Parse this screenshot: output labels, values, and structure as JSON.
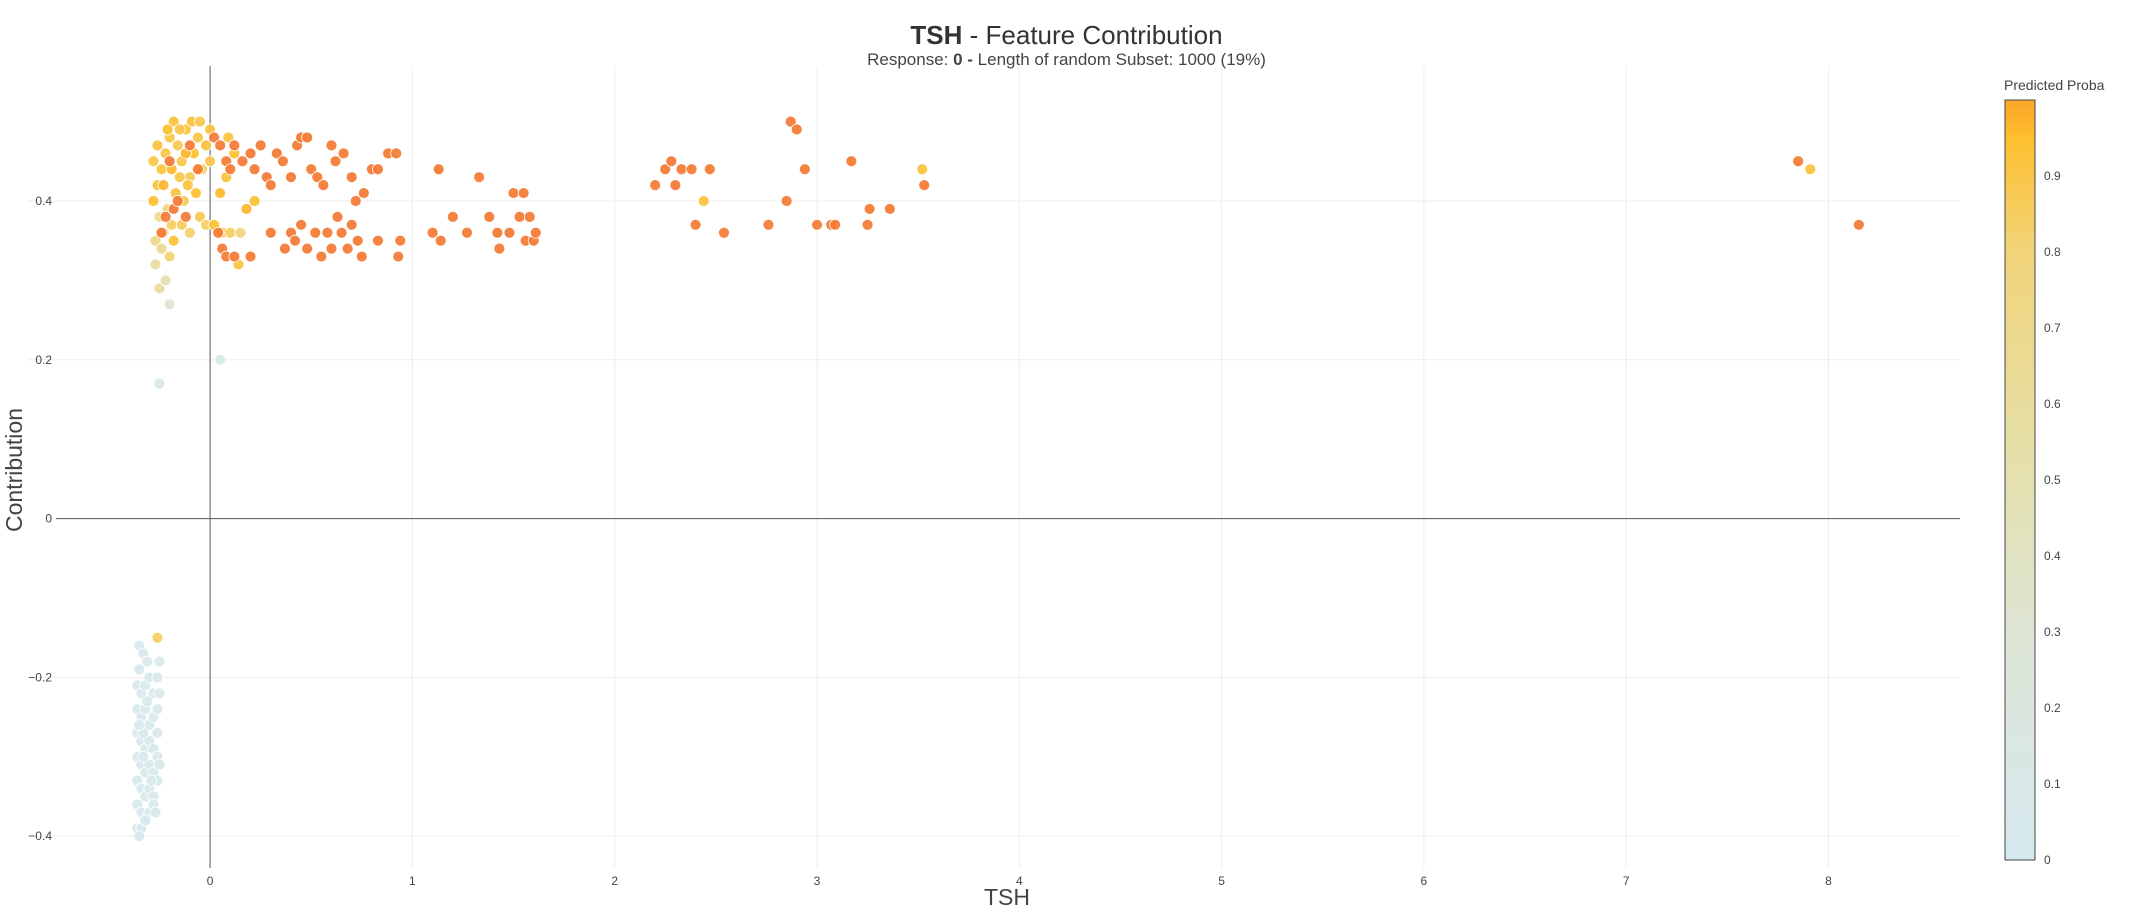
{
  "header": {
    "title_bold": "TSH",
    "title_rest": " - Feature Contribution",
    "subtitle_prefix": "Response: ",
    "subtitle_bold": "0 - ",
    "subtitle_rest": "Length of random Subset: 1000 (19%)"
  },
  "chart_data": {
    "type": "scatter",
    "title": "TSH - Feature Contribution",
    "subtitle": "Response: 0 - Length of random Subset: 1000 (19%)",
    "xlabel": "TSH",
    "ylabel": "Contribution",
    "xlim": [
      -0.9,
      8.65
    ],
    "ylim": [
      -0.44,
      0.57
    ],
    "x_ticks": [
      0,
      1,
      2,
      3,
      4,
      5,
      6,
      7,
      8
    ],
    "x_tick_labels": [
      "0",
      "1",
      "2",
      "3",
      "4",
      "5",
      "6",
      "7",
      "8"
    ],
    "y_ticks": [
      -0.4,
      -0.2,
      0,
      0.2,
      0.4
    ],
    "y_tick_labels": [
      "−0.4",
      "−0.2",
      "0",
      "0.2",
      "0.4"
    ],
    "grid": true,
    "zero_lines": true,
    "colorbar": {
      "title": "Predicted Proba",
      "range": [
        0,
        1
      ],
      "ticks": [
        0,
        0.1,
        0.2,
        0.3,
        0.4,
        0.5,
        0.6,
        0.7,
        0.8,
        0.9
      ],
      "tick_labels": [
        "0",
        "0.1",
        "0.2",
        "0.3",
        "0.4",
        "0.5",
        "0.6",
        "0.7",
        "0.8",
        "0.9"
      ],
      "colors": [
        "#d6e9f0",
        "#dde5d4",
        "#e6dfa6",
        "#f1d47a",
        "#fdbf2e",
        "#fca529"
      ]
    },
    "points": [
      {
        "x": -0.25,
        "y": 0.17,
        "c": 0.05
      },
      {
        "x": 0.05,
        "y": 0.2,
        "c": 0.08
      },
      {
        "x": -0.2,
        "y": 0.27,
        "c": 0.3
      },
      {
        "x": -0.25,
        "y": 0.29,
        "c": 0.6
      },
      {
        "x": -0.27,
        "y": 0.32,
        "c": 0.6
      },
      {
        "x": -0.22,
        "y": 0.3,
        "c": 0.5
      },
      {
        "x": -0.26,
        "y": -0.15,
        "c": 0.85
      },
      {
        "x": -0.28,
        "y": 0.4,
        "c": 0.95
      },
      {
        "x": -0.26,
        "y": 0.42,
        "c": 0.93
      },
      {
        "x": -0.24,
        "y": 0.44,
        "c": 0.92
      },
      {
        "x": -0.22,
        "y": 0.46,
        "c": 0.91
      },
      {
        "x": -0.2,
        "y": 0.48,
        "c": 0.9
      },
      {
        "x": -0.18,
        "y": 0.5,
        "c": 0.93
      },
      {
        "x": -0.16,
        "y": 0.47,
        "c": 0.88
      },
      {
        "x": -0.14,
        "y": 0.45,
        "c": 0.9
      },
      {
        "x": -0.12,
        "y": 0.49,
        "c": 0.94
      },
      {
        "x": -0.1,
        "y": 0.43,
        "c": 0.87
      },
      {
        "x": -0.08,
        "y": 0.46,
        "c": 0.95
      },
      {
        "x": -0.06,
        "y": 0.48,
        "c": 0.9
      },
      {
        "x": -0.04,
        "y": 0.44,
        "c": 0.86
      },
      {
        "x": -0.02,
        "y": 0.47,
        "c": 0.93
      },
      {
        "x": -0.25,
        "y": 0.38,
        "c": 0.7
      },
      {
        "x": -0.23,
        "y": 0.36,
        "c": 0.75
      },
      {
        "x": -0.21,
        "y": 0.39,
        "c": 0.8
      },
      {
        "x": -0.19,
        "y": 0.37,
        "c": 0.85
      },
      {
        "x": -0.17,
        "y": 0.41,
        "c": 0.92
      },
      {
        "x": -0.15,
        "y": 0.43,
        "c": 0.9
      },
      {
        "x": -0.13,
        "y": 0.4,
        "c": 0.88
      },
      {
        "x": -0.11,
        "y": 0.42,
        "c": 0.93
      },
      {
        "x": -0.27,
        "y": 0.35,
        "c": 0.72
      },
      {
        "x": -0.24,
        "y": 0.34,
        "c": 0.68
      },
      {
        "x": -0.2,
        "y": 0.33,
        "c": 0.82
      },
      {
        "x": -0.18,
        "y": 0.35,
        "c": 0.94
      },
      {
        "x": -0.28,
        "y": 0.45,
        "c": 0.9
      },
      {
        "x": -0.26,
        "y": 0.47,
        "c": 0.92
      },
      {
        "x": -0.21,
        "y": 0.49,
        "c": 0.95
      },
      {
        "x": -0.15,
        "y": 0.49,
        "c": 0.9
      },
      {
        "x": -0.09,
        "y": 0.5,
        "c": 0.92
      },
      {
        "x": -0.05,
        "y": 0.5,
        "c": 0.89
      },
      {
        "x": -0.23,
        "y": 0.42,
        "c": 0.97
      },
      {
        "x": -0.19,
        "y": 0.44,
        "c": 0.96
      },
      {
        "x": -0.12,
        "y": 0.46,
        "c": 0.97
      },
      {
        "x": -0.07,
        "y": 0.41,
        "c": 0.95
      },
      {
        "x": -0.05,
        "y": 0.38,
        "c": 0.88
      },
      {
        "x": -0.02,
        "y": 0.37,
        "c": 0.84
      },
      {
        "x": -0.1,
        "y": 0.36,
        "c": 0.82
      },
      {
        "x": -0.14,
        "y": 0.37,
        "c": 0.86
      },
      {
        "x": 0.0,
        "y": 0.45,
        "c": 0.9
      },
      {
        "x": 0.0,
        "y": 0.49,
        "c": 0.92
      },
      {
        "x": -0.22,
        "y": 0.38,
        "c": 1.0
      },
      {
        "x": -0.18,
        "y": 0.39,
        "c": 1.0
      },
      {
        "x": -0.12,
        "y": 0.38,
        "c": 1.0
      },
      {
        "x": -0.16,
        "y": 0.4,
        "c": 1.0
      },
      {
        "x": -0.24,
        "y": 0.36,
        "c": 1.0
      },
      {
        "x": -0.2,
        "y": 0.45,
        "c": 1.0
      },
      {
        "x": -0.1,
        "y": 0.47,
        "c": 1.0
      },
      {
        "x": -0.06,
        "y": 0.44,
        "c": 1.0
      },
      {
        "x": 0.02,
        "y": 0.37,
        "c": 0.95
      },
      {
        "x": 0.06,
        "y": 0.36,
        "c": 0.9
      },
      {
        "x": 0.1,
        "y": 0.36,
        "c": 0.85
      },
      {
        "x": 0.15,
        "y": 0.36,
        "c": 0.8
      },
      {
        "x": 0.05,
        "y": 0.41,
        "c": 0.96
      },
      {
        "x": 0.08,
        "y": 0.43,
        "c": 0.93
      },
      {
        "x": 0.12,
        "y": 0.46,
        "c": 0.95
      },
      {
        "x": 0.09,
        "y": 0.48,
        "c": 0.92
      },
      {
        "x": 0.18,
        "y": 0.39,
        "c": 0.97
      },
      {
        "x": 0.22,
        "y": 0.4,
        "c": 0.94
      },
      {
        "x": 0.14,
        "y": 0.32,
        "c": 0.92
      },
      {
        "x": 0.02,
        "y": 0.48,
        "c": 1.0
      },
      {
        "x": 0.05,
        "y": 0.47,
        "c": 1.0
      },
      {
        "x": 0.08,
        "y": 0.45,
        "c": 1.0
      },
      {
        "x": 0.1,
        "y": 0.44,
        "c": 1.0
      },
      {
        "x": 0.12,
        "y": 0.47,
        "c": 1.0
      },
      {
        "x": 0.16,
        "y": 0.45,
        "c": 1.0
      },
      {
        "x": 0.2,
        "y": 0.46,
        "c": 1.0
      },
      {
        "x": 0.22,
        "y": 0.44,
        "c": 1.0
      },
      {
        "x": 0.25,
        "y": 0.47,
        "c": 1.0
      },
      {
        "x": 0.28,
        "y": 0.43,
        "c": 1.0
      },
      {
        "x": 0.3,
        "y": 0.42,
        "c": 1.0
      },
      {
        "x": 0.33,
        "y": 0.46,
        "c": 1.0
      },
      {
        "x": 0.36,
        "y": 0.45,
        "c": 1.0
      },
      {
        "x": 0.4,
        "y": 0.43,
        "c": 1.0
      },
      {
        "x": 0.43,
        "y": 0.47,
        "c": 1.0
      },
      {
        "x": 0.45,
        "y": 0.48,
        "c": 1.0
      },
      {
        "x": 0.48,
        "y": 0.48,
        "c": 1.0
      },
      {
        "x": 0.5,
        "y": 0.44,
        "c": 1.0
      },
      {
        "x": 0.53,
        "y": 0.43,
        "c": 1.0
      },
      {
        "x": 0.56,
        "y": 0.42,
        "c": 1.0
      },
      {
        "x": 0.6,
        "y": 0.47,
        "c": 1.0
      },
      {
        "x": 0.62,
        "y": 0.45,
        "c": 1.0
      },
      {
        "x": 0.66,
        "y": 0.46,
        "c": 1.0
      },
      {
        "x": 0.7,
        "y": 0.43,
        "c": 1.0
      },
      {
        "x": 0.72,
        "y": 0.4,
        "c": 1.0
      },
      {
        "x": 0.76,
        "y": 0.41,
        "c": 1.0
      },
      {
        "x": 0.8,
        "y": 0.44,
        "c": 1.0
      },
      {
        "x": 0.83,
        "y": 0.44,
        "c": 1.0
      },
      {
        "x": 0.88,
        "y": 0.46,
        "c": 1.0
      },
      {
        "x": 0.92,
        "y": 0.46,
        "c": 1.0
      },
      {
        "x": 0.04,
        "y": 0.36,
        "c": 1.0
      },
      {
        "x": 0.06,
        "y": 0.34,
        "c": 1.0
      },
      {
        "x": 0.08,
        "y": 0.33,
        "c": 1.0
      },
      {
        "x": 0.12,
        "y": 0.33,
        "c": 1.0
      },
      {
        "x": 0.2,
        "y": 0.33,
        "c": 1.0
      },
      {
        "x": 0.3,
        "y": 0.36,
        "c": 1.0
      },
      {
        "x": 0.37,
        "y": 0.34,
        "c": 1.0
      },
      {
        "x": 0.4,
        "y": 0.36,
        "c": 1.0
      },
      {
        "x": 0.42,
        "y": 0.35,
        "c": 1.0
      },
      {
        "x": 0.45,
        "y": 0.37,
        "c": 1.0
      },
      {
        "x": 0.48,
        "y": 0.34,
        "c": 1.0
      },
      {
        "x": 0.52,
        "y": 0.36,
        "c": 1.0
      },
      {
        "x": 0.55,
        "y": 0.33,
        "c": 1.0
      },
      {
        "x": 0.58,
        "y": 0.36,
        "c": 1.0
      },
      {
        "x": 0.6,
        "y": 0.34,
        "c": 1.0
      },
      {
        "x": 0.63,
        "y": 0.38,
        "c": 1.0
      },
      {
        "x": 0.65,
        "y": 0.36,
        "c": 1.0
      },
      {
        "x": 0.68,
        "y": 0.34,
        "c": 1.0
      },
      {
        "x": 0.7,
        "y": 0.37,
        "c": 1.0
      },
      {
        "x": 0.73,
        "y": 0.35,
        "c": 1.0
      },
      {
        "x": 0.75,
        "y": 0.33,
        "c": 1.0
      },
      {
        "x": 0.83,
        "y": 0.35,
        "c": 1.0
      },
      {
        "x": 0.93,
        "y": 0.33,
        "c": 1.0
      },
      {
        "x": 0.94,
        "y": 0.35,
        "c": 1.0
      },
      {
        "x": 1.1,
        "y": 0.36,
        "c": 1.0
      },
      {
        "x": 1.14,
        "y": 0.35,
        "c": 1.0
      },
      {
        "x": 1.13,
        "y": 0.44,
        "c": 1.0
      },
      {
        "x": 1.2,
        "y": 0.38,
        "c": 1.0
      },
      {
        "x": 1.27,
        "y": 0.36,
        "c": 1.0
      },
      {
        "x": 1.33,
        "y": 0.43,
        "c": 1.0
      },
      {
        "x": 1.38,
        "y": 0.38,
        "c": 1.0
      },
      {
        "x": 1.42,
        "y": 0.36,
        "c": 1.0
      },
      {
        "x": 1.43,
        "y": 0.34,
        "c": 1.0
      },
      {
        "x": 1.48,
        "y": 0.36,
        "c": 1.0
      },
      {
        "x": 1.5,
        "y": 0.41,
        "c": 1.0
      },
      {
        "x": 1.53,
        "y": 0.38,
        "c": 1.0
      },
      {
        "x": 1.55,
        "y": 0.41,
        "c": 1.0
      },
      {
        "x": 1.56,
        "y": 0.35,
        "c": 1.0
      },
      {
        "x": 1.58,
        "y": 0.38,
        "c": 1.0
      },
      {
        "x": 1.6,
        "y": 0.35,
        "c": 1.0
      },
      {
        "x": 1.61,
        "y": 0.36,
        "c": 1.0
      },
      {
        "x": 2.2,
        "y": 0.42,
        "c": 1.0
      },
      {
        "x": 2.25,
        "y": 0.44,
        "c": 1.0
      },
      {
        "x": 2.28,
        "y": 0.45,
        "c": 1.0
      },
      {
        "x": 2.3,
        "y": 0.42,
        "c": 1.0
      },
      {
        "x": 2.33,
        "y": 0.44,
        "c": 1.0
      },
      {
        "x": 2.38,
        "y": 0.44,
        "c": 1.0
      },
      {
        "x": 2.4,
        "y": 0.37,
        "c": 1.0
      },
      {
        "x": 2.44,
        "y": 0.4,
        "c": 0.93
      },
      {
        "x": 2.47,
        "y": 0.44,
        "c": 1.0
      },
      {
        "x": 2.54,
        "y": 0.36,
        "c": 1.0
      },
      {
        "x": 2.76,
        "y": 0.37,
        "c": 1.0
      },
      {
        "x": 2.85,
        "y": 0.4,
        "c": 1.0
      },
      {
        "x": 2.87,
        "y": 0.5,
        "c": 1.0
      },
      {
        "x": 2.9,
        "y": 0.49,
        "c": 1.0
      },
      {
        "x": 2.94,
        "y": 0.44,
        "c": 1.0
      },
      {
        "x": 3.0,
        "y": 0.37,
        "c": 1.0
      },
      {
        "x": 3.07,
        "y": 0.37,
        "c": 1.0
      },
      {
        "x": 3.09,
        "y": 0.37,
        "c": 1.0
      },
      {
        "x": 3.17,
        "y": 0.45,
        "c": 1.0
      },
      {
        "x": 3.25,
        "y": 0.37,
        "c": 1.0
      },
      {
        "x": 3.26,
        "y": 0.39,
        "c": 1.0
      },
      {
        "x": 3.36,
        "y": 0.39,
        "c": 1.0
      },
      {
        "x": 3.52,
        "y": 0.44,
        "c": 0.92
      },
      {
        "x": 3.53,
        "y": 0.42,
        "c": 1.0
      },
      {
        "x": 7.85,
        "y": 0.45,
        "c": 1.0
      },
      {
        "x": 7.91,
        "y": 0.44,
        "c": 0.93
      },
      {
        "x": 8.15,
        "y": 0.37,
        "c": 1.0
      },
      {
        "x": -0.35,
        "y": -0.16,
        "c": 0.04
      },
      {
        "x": -0.33,
        "y": -0.17,
        "c": 0.05
      },
      {
        "x": -0.31,
        "y": -0.18,
        "c": 0.04
      },
      {
        "x": -0.35,
        "y": -0.19,
        "c": 0.03
      },
      {
        "x": -0.25,
        "y": -0.18,
        "c": 0.05
      },
      {
        "x": -0.36,
        "y": -0.21,
        "c": 0.04
      },
      {
        "x": -0.34,
        "y": -0.22,
        "c": 0.04
      },
      {
        "x": -0.32,
        "y": -0.21,
        "c": 0.05
      },
      {
        "x": -0.3,
        "y": -0.2,
        "c": 0.03
      },
      {
        "x": -0.28,
        "y": -0.22,
        "c": 0.04
      },
      {
        "x": -0.26,
        "y": -0.2,
        "c": 0.05
      },
      {
        "x": -0.25,
        "y": -0.22,
        "c": 0.04
      },
      {
        "x": -0.36,
        "y": -0.24,
        "c": 0.03
      },
      {
        "x": -0.34,
        "y": -0.25,
        "c": 0.04
      },
      {
        "x": -0.32,
        "y": -0.24,
        "c": 0.05
      },
      {
        "x": -0.3,
        "y": -0.26,
        "c": 0.04
      },
      {
        "x": -0.28,
        "y": -0.25,
        "c": 0.03
      },
      {
        "x": -0.26,
        "y": -0.24,
        "c": 0.04
      },
      {
        "x": -0.36,
        "y": -0.27,
        "c": 0.05
      },
      {
        "x": -0.34,
        "y": -0.28,
        "c": 0.04
      },
      {
        "x": -0.32,
        "y": -0.29,
        "c": 0.03
      },
      {
        "x": -0.3,
        "y": -0.28,
        "c": 0.04
      },
      {
        "x": -0.28,
        "y": -0.29,
        "c": 0.05
      },
      {
        "x": -0.26,
        "y": -0.27,
        "c": 0.04
      },
      {
        "x": -0.36,
        "y": -0.3,
        "c": 0.03
      },
      {
        "x": -0.34,
        "y": -0.31,
        "c": 0.04
      },
      {
        "x": -0.32,
        "y": -0.32,
        "c": 0.05
      },
      {
        "x": -0.3,
        "y": -0.31,
        "c": 0.04
      },
      {
        "x": -0.28,
        "y": -0.32,
        "c": 0.03
      },
      {
        "x": -0.26,
        "y": -0.3,
        "c": 0.04
      },
      {
        "x": -0.25,
        "y": -0.31,
        "c": 0.05
      },
      {
        "x": -0.36,
        "y": -0.33,
        "c": 0.04
      },
      {
        "x": -0.34,
        "y": -0.34,
        "c": 0.03
      },
      {
        "x": -0.32,
        "y": -0.35,
        "c": 0.04
      },
      {
        "x": -0.3,
        "y": -0.34,
        "c": 0.05
      },
      {
        "x": -0.28,
        "y": -0.35,
        "c": 0.04
      },
      {
        "x": -0.26,
        "y": -0.33,
        "c": 0.03
      },
      {
        "x": -0.36,
        "y": -0.36,
        "c": 0.04
      },
      {
        "x": -0.34,
        "y": -0.37,
        "c": 0.05
      },
      {
        "x": -0.32,
        "y": -0.38,
        "c": 0.04
      },
      {
        "x": -0.3,
        "y": -0.37,
        "c": 0.03
      },
      {
        "x": -0.28,
        "y": -0.36,
        "c": 0.04
      },
      {
        "x": -0.36,
        "y": -0.39,
        "c": 0.05
      },
      {
        "x": -0.34,
        "y": -0.39,
        "c": 0.04
      },
      {
        "x": -0.32,
        "y": -0.38,
        "c": 0.03
      },
      {
        "x": -0.35,
        "y": -0.4,
        "c": 0.04
      },
      {
        "x": -0.33,
        "y": -0.27,
        "c": 0.05
      },
      {
        "x": -0.31,
        "y": -0.23,
        "c": 0.04
      },
      {
        "x": -0.29,
        "y": -0.33,
        "c": 0.03
      },
      {
        "x": -0.27,
        "y": -0.37,
        "c": 0.04
      },
      {
        "x": -0.33,
        "y": -0.3,
        "c": 0.05
      },
      {
        "x": -0.35,
        "y": -0.26,
        "c": 0.04
      }
    ]
  }
}
